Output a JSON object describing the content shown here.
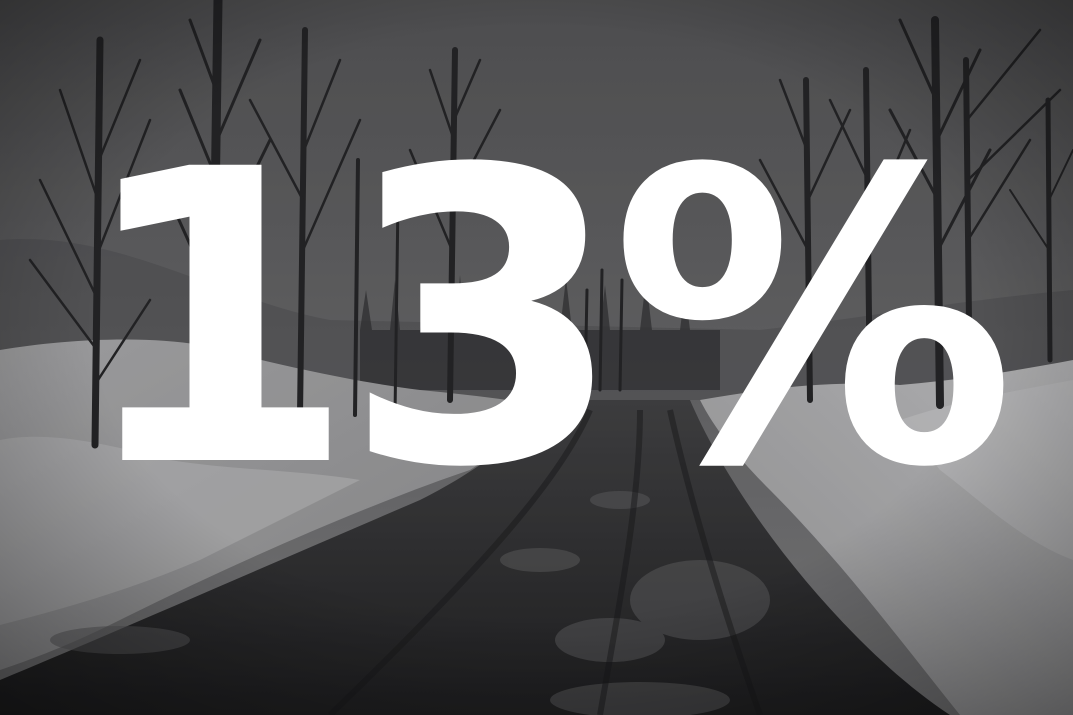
{
  "overlay": {
    "stat_text": "13%",
    "text_color": "#ffffff"
  },
  "background": {
    "subject": "muddy-road-between-snowbanks-and-bare-trees",
    "sky_color": "#6a6a6c",
    "snow_color": "#cfcfd0",
    "road_color": "#2e2e30"
  }
}
